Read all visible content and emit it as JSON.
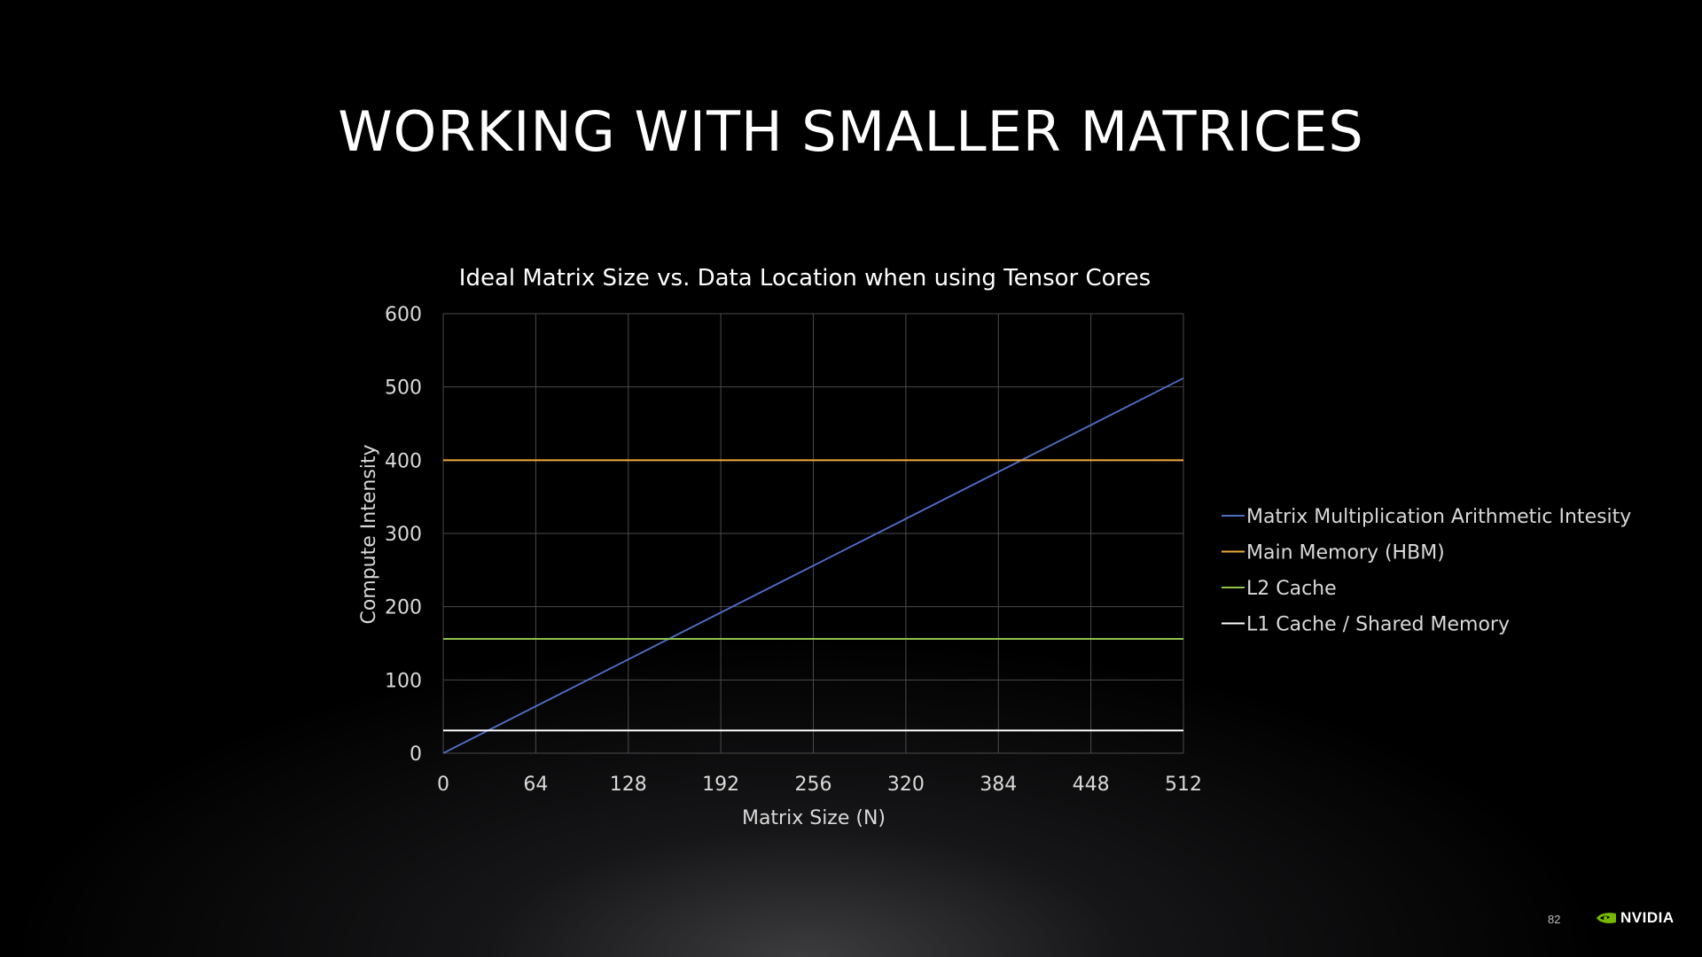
{
  "slide": {
    "title": "WORKING WITH SMALLER MATRICES",
    "page_number": "82",
    "logo": {
      "text": "NVIDIA",
      "icon": "nvidia-eye-logo",
      "color": "#76b900"
    }
  },
  "chart_data": {
    "type": "line",
    "title": "Ideal Matrix Size vs. Data Location when using Tensor Cores",
    "xlabel": "Matrix Size (N)",
    "ylabel": "Compute Intensity",
    "xlim": [
      0,
      512
    ],
    "ylim": [
      0,
      600
    ],
    "xticks": [
      0,
      64,
      128,
      192,
      256,
      320,
      384,
      448,
      512
    ],
    "yticks": [
      0,
      100,
      200,
      300,
      400,
      500,
      600
    ],
    "grid": true,
    "legend_position": "right",
    "series": [
      {
        "name": "Matrix Multiplication Arithmetic Intesity",
        "color": "#4f6fc6",
        "x": [
          0,
          512
        ],
        "y": [
          0,
          512
        ]
      },
      {
        "name": "Main Memory (HBM)",
        "color": "#f2a93b",
        "x": [
          0,
          512
        ],
        "y": [
          400,
          400
        ]
      },
      {
        "name": "L2 Cache",
        "color": "#8fc34e",
        "x": [
          0,
          512
        ],
        "y": [
          156,
          156
        ]
      },
      {
        "name": "L1 Cache / Shared Memory",
        "color": "#ffffff",
        "x": [
          0,
          512
        ],
        "y": [
          31,
          31
        ]
      }
    ]
  }
}
